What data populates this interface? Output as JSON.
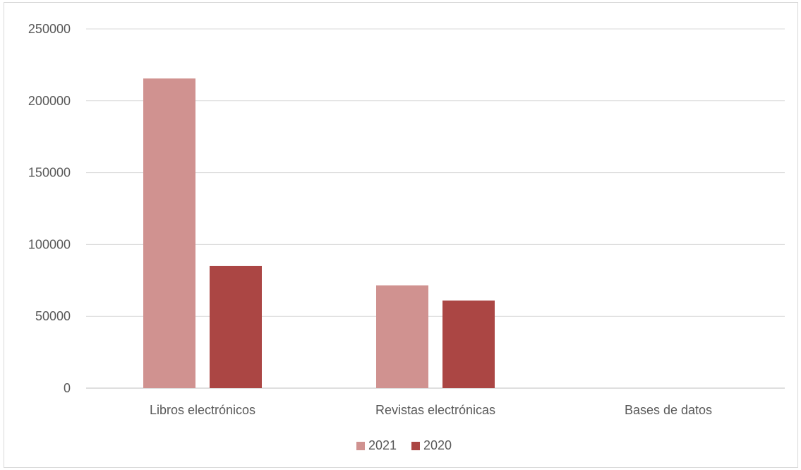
{
  "chart_data": {
    "type": "bar",
    "categories": [
      "Libros electrónicos",
      "Revistas electrónicas",
      "Bases de datos"
    ],
    "series": [
      {
        "name": "2021",
        "values": [
          215500,
          71500,
          0
        ],
        "color": "#d09290"
      },
      {
        "name": "2020",
        "values": [
          85000,
          61000,
          0
        ],
        "color": "#ab4644"
      }
    ],
    "ylim": [
      0,
      250000
    ],
    "yticks": [
      "0",
      "50000",
      "100000",
      "150000",
      "200000",
      "250000"
    ],
    "grid": true,
    "legend_position": "bottom",
    "title": "",
    "xlabel": "",
    "ylabel": ""
  }
}
